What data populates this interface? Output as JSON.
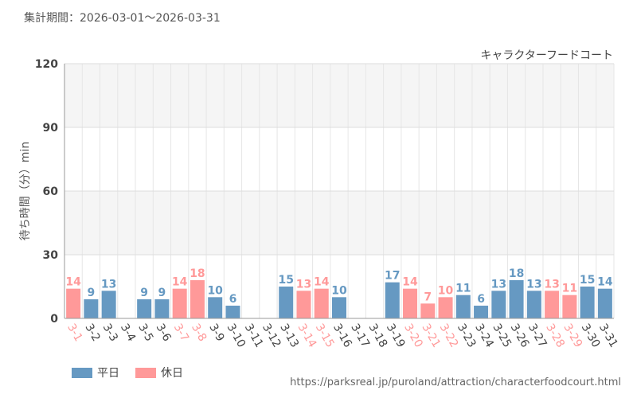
{
  "period_label": "集計期間：2026-03-01～2026-03-31",
  "source_url": "https://parksreal.jp/puroland/attraction/characterfoodcourt.html",
  "legend": {
    "weekday": "平日",
    "holiday": "休日"
  },
  "colors": {
    "weekday": "#6699c2",
    "holiday": "#ff9999",
    "band": "#f5f5f5",
    "grid": "#dddddd",
    "axis": "#999999"
  },
  "chart_data": {
    "type": "bar",
    "title": "キャラクターフードコート",
    "ylabel": "待ち時間（分）min",
    "xlabel": "",
    "ylim": [
      0,
      120
    ],
    "yticks": [
      0,
      30,
      60,
      90,
      120
    ],
    "categories": [
      "3-1",
      "3-2",
      "3-3",
      "3-4",
      "3-5",
      "3-6",
      "3-7",
      "3-8",
      "3-9",
      "3-10",
      "3-11",
      "3-12",
      "3-13",
      "3-14",
      "3-15",
      "3-16",
      "3-17",
      "3-18",
      "3-19",
      "3-20",
      "3-21",
      "3-22",
      "3-23",
      "3-24",
      "3-25",
      "3-26",
      "3-27",
      "3-28",
      "3-29",
      "3-30",
      "3-31"
    ],
    "values": [
      14,
      9,
      13,
      null,
      9,
      9,
      14,
      18,
      10,
      6,
      null,
      null,
      15,
      13,
      14,
      10,
      null,
      null,
      17,
      14,
      7,
      10,
      11,
      6,
      13,
      18,
      13,
      13,
      11,
      15,
      14
    ],
    "day_type": [
      "holiday",
      "weekday",
      "weekday",
      "weekday",
      "weekday",
      "weekday",
      "holiday",
      "holiday",
      "weekday",
      "weekday",
      "weekday",
      "weekday",
      "weekday",
      "holiday",
      "holiday",
      "weekday",
      "weekday",
      "weekday",
      "weekday",
      "holiday",
      "holiday",
      "holiday",
      "weekday",
      "weekday",
      "weekday",
      "weekday",
      "weekday",
      "holiday",
      "holiday",
      "weekday",
      "weekday"
    ],
    "grid": true,
    "legend_position": "bottom-left"
  }
}
